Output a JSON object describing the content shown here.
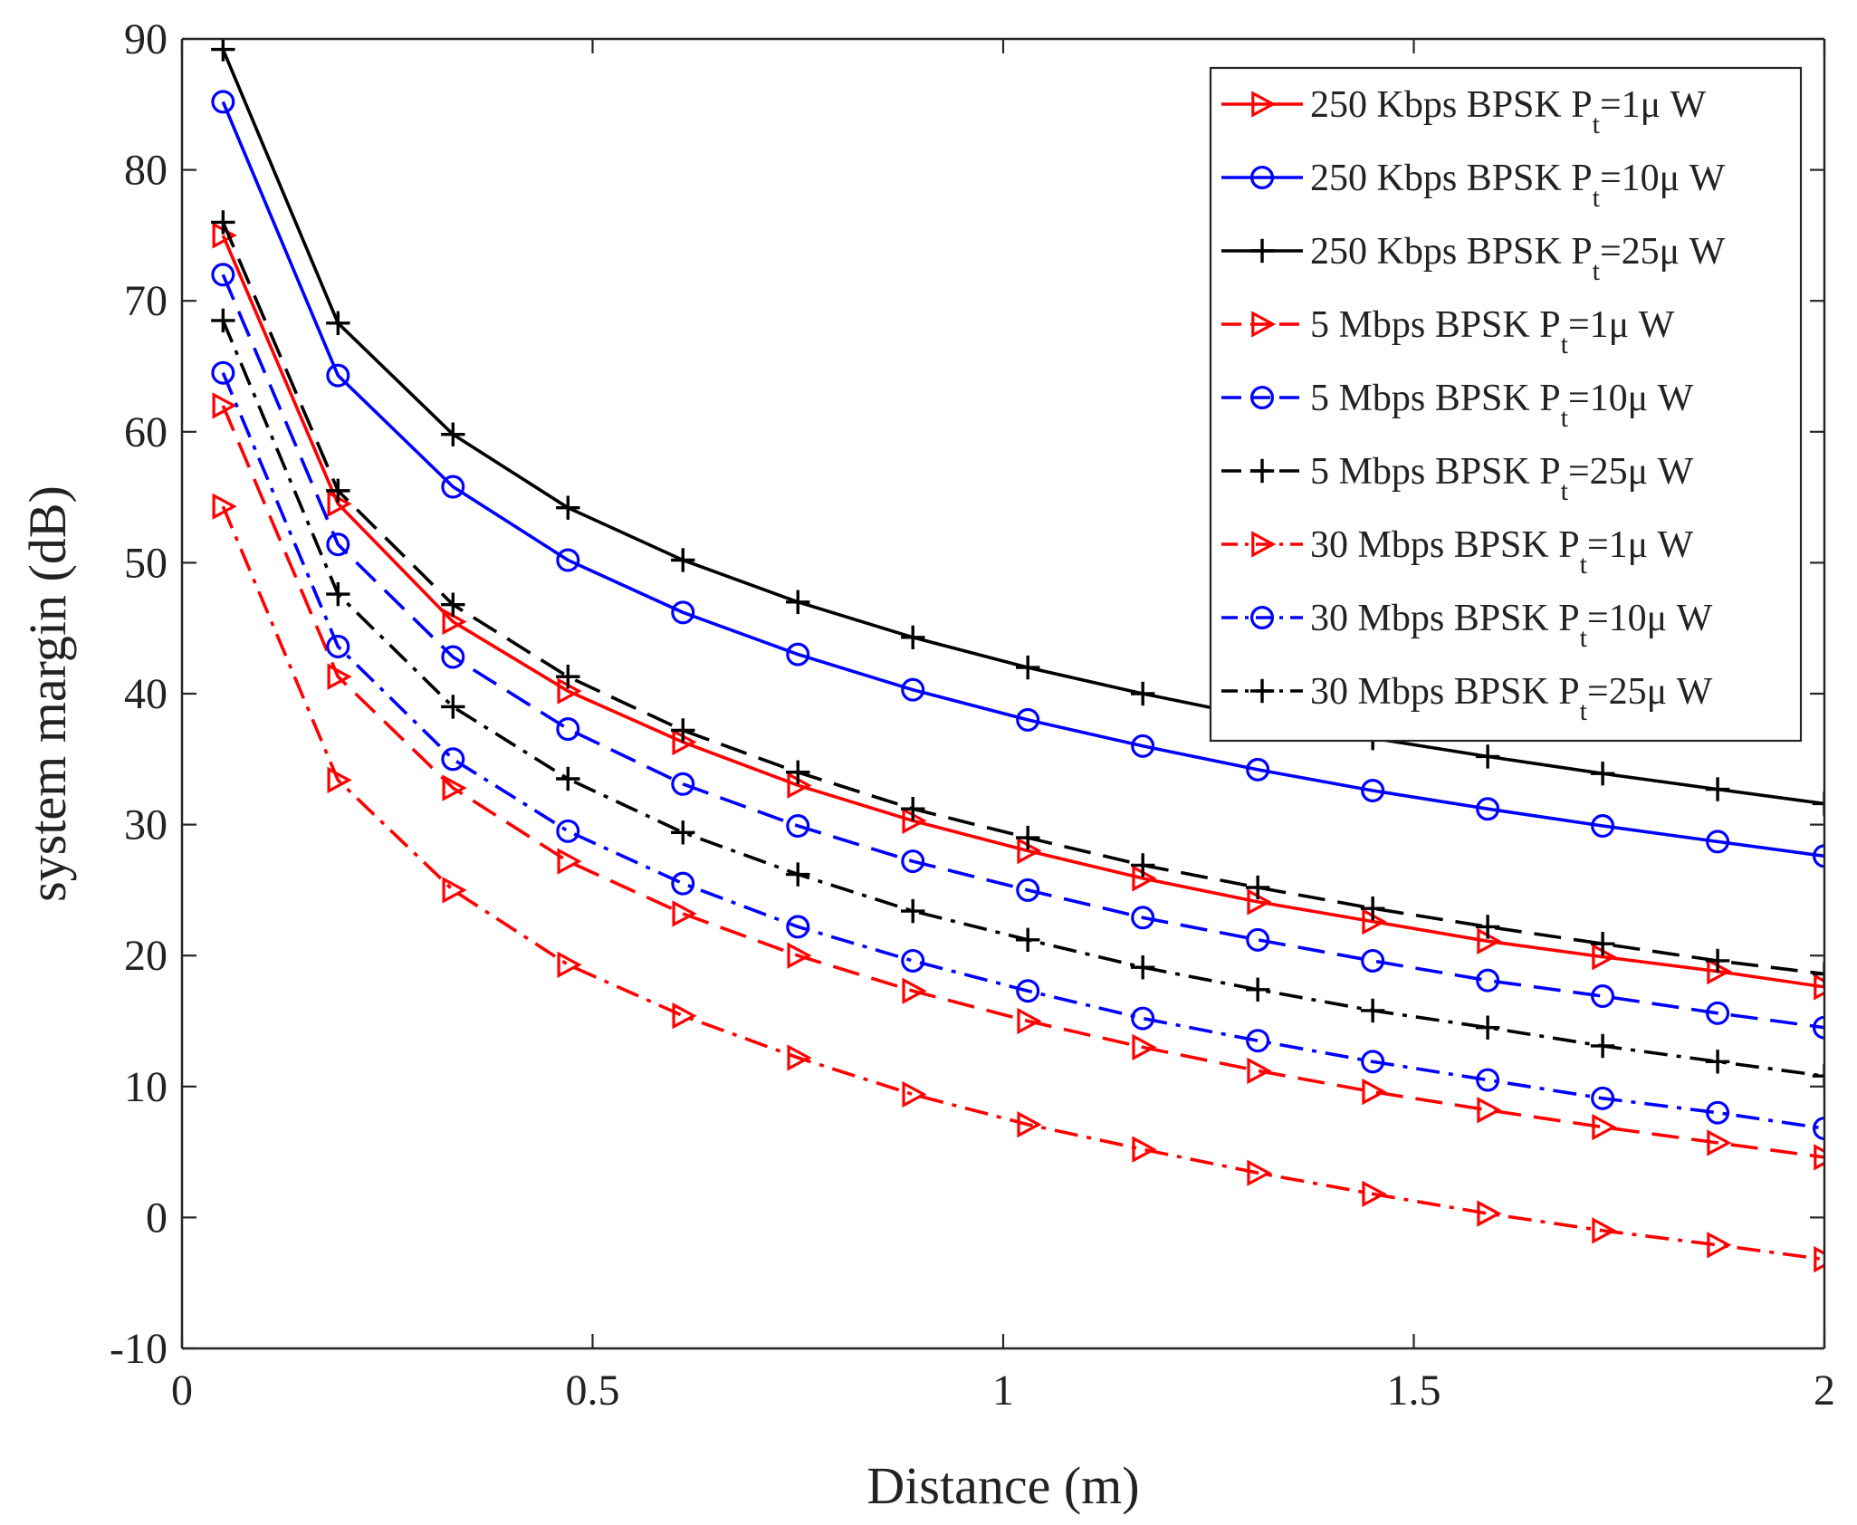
{
  "chart_data": {
    "type": "line",
    "title": "",
    "xlabel": "Distance (m)",
    "ylabel": "system margin (dB)",
    "xlim": [
      0,
      2
    ],
    "ylim": [
      -10,
      90
    ],
    "xticks": [
      0,
      0.5,
      1,
      1.5,
      2
    ],
    "xtick_labels": [
      "0",
      "0.5",
      "1",
      "1.5",
      "2"
    ],
    "yticks": [
      -10,
      0,
      10,
      20,
      30,
      40,
      50,
      60,
      70,
      80,
      90
    ],
    "ytick_labels": [
      "-10",
      "0",
      "10",
      "20",
      "30",
      "40",
      "50",
      "60",
      "70",
      "80",
      "90"
    ],
    "grid": false,
    "legend_position": "top-right",
    "x": [
      0.05,
      0.19,
      0.33,
      0.47,
      0.61,
      0.75,
      0.89,
      1.03,
      1.17,
      1.31,
      1.45,
      1.59,
      1.73,
      1.87,
      2.0
    ],
    "series": [
      {
        "name": "250 Kbps BPSK P_t=1μ W",
        "name_main": "250 Kbps BPSK P",
        "name_sub": "t",
        "name_tail": "=1μ W",
        "color": "#ff0000",
        "line_style": "solid",
        "marker": "triangle-right",
        "values": [
          75.0,
          54.5,
          45.5,
          40.2,
          36.3,
          33.0,
          30.3,
          28.0,
          25.9,
          24.1,
          22.6,
          21.1,
          19.9,
          18.8,
          17.6
        ]
      },
      {
        "name": "250 Kbps BPSK P_t=10μ W",
        "name_main": "250 Kbps BPSK P",
        "name_sub": "t",
        "name_tail": "=10μ W",
        "color": "#0000ff",
        "line_style": "solid",
        "marker": "circle",
        "values": [
          85.2,
          64.3,
          55.8,
          50.2,
          46.2,
          43.0,
          40.3,
          38.0,
          36.0,
          34.2,
          32.6,
          31.2,
          29.9,
          28.7,
          27.6
        ]
      },
      {
        "name": "250 Kbps BPSK P_t=25μ W",
        "name_main": "250 Kbps BPSK P",
        "name_sub": "t",
        "name_tail": "=25μ W",
        "color": "#000000",
        "line_style": "solid",
        "marker": "plus",
        "values": [
          89.2,
          68.3,
          59.8,
          54.2,
          50.2,
          47.0,
          44.3,
          42.0,
          40.0,
          38.2,
          36.6,
          35.2,
          33.9,
          32.7,
          31.6
        ]
      },
      {
        "name": "5 Mbps BPSK P_t=1μ W",
        "name_main": "5 Mbps BPSK P",
        "name_sub": "t",
        "name_tail": "=1μ W",
        "color": "#ff0000",
        "line_style": "dashed",
        "marker": "triangle-right",
        "values": [
          62.0,
          41.3,
          32.8,
          27.2,
          23.2,
          20.0,
          17.3,
          15.0,
          13.0,
          11.2,
          9.6,
          8.2,
          6.9,
          5.7,
          4.6
        ]
      },
      {
        "name": "5 Mbps BPSK P_t=10μ W",
        "name_main": "5 Mbps BPSK P",
        "name_sub": "t",
        "name_tail": "=10μ W",
        "color": "#0000ff",
        "line_style": "dashed",
        "marker": "circle",
        "values": [
          72.0,
          51.4,
          42.8,
          37.3,
          33.1,
          29.9,
          27.2,
          25.0,
          22.9,
          21.2,
          19.6,
          18.1,
          16.9,
          15.6,
          14.5
        ]
      },
      {
        "name": "5 Mbps BPSK P_t=25μ W",
        "name_main": "5 Mbps BPSK P",
        "name_sub": "t",
        "name_tail": "=25μ W",
        "color": "#000000",
        "line_style": "dashed",
        "marker": "plus",
        "values": [
          76.0,
          55.5,
          46.8,
          41.3,
          37.2,
          34.0,
          31.2,
          29.0,
          26.9,
          25.2,
          23.6,
          22.2,
          20.9,
          19.6,
          18.6
        ]
      },
      {
        "name": "30 Mbps BPSK P_t=1μ W",
        "name_main": "30 Mbps BPSK P",
        "name_sub": "t",
        "name_tail": "=1μ W",
        "color": "#ff0000",
        "line_style": "dashdot",
        "marker": "triangle-right",
        "values": [
          54.3,
          33.4,
          25.0,
          19.3,
          15.4,
          12.2,
          9.4,
          7.1,
          5.2,
          3.4,
          1.8,
          0.3,
          -1.0,
          -2.1,
          -3.2
        ]
      },
      {
        "name": "30 Mbps BPSK P_t=10μ W",
        "name_main": "30 Mbps BPSK P",
        "name_sub": "t",
        "name_tail": "=10μ W",
        "color": "#0000ff",
        "line_style": "dashdot",
        "marker": "circle",
        "values": [
          64.5,
          43.6,
          35.0,
          29.5,
          25.5,
          22.2,
          19.6,
          17.3,
          15.2,
          13.5,
          11.9,
          10.5,
          9.1,
          8.0,
          6.8
        ]
      },
      {
        "name": "30 Mbps BPSK P_t=25μ W",
        "name_main": "30 Mbps BPSK P",
        "name_sub": "t",
        "name_tail": "=25μ W",
        "color": "#000000",
        "line_style": "dashdot",
        "marker": "plus",
        "values": [
          68.5,
          47.6,
          39.0,
          33.5,
          29.4,
          26.2,
          23.4,
          21.2,
          19.1,
          17.4,
          15.8,
          14.5,
          13.1,
          11.9,
          10.8
        ]
      }
    ]
  }
}
